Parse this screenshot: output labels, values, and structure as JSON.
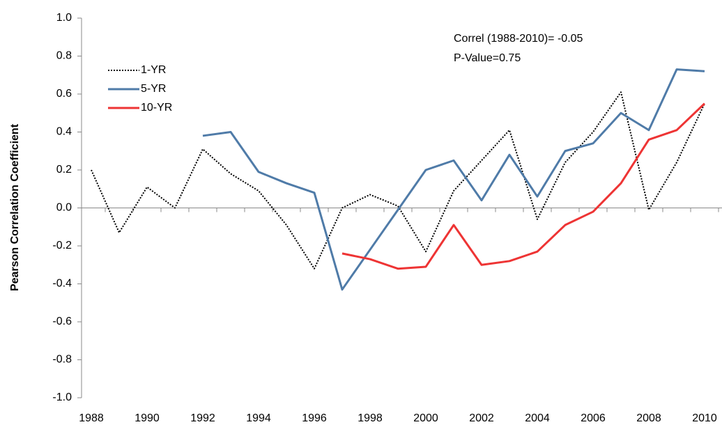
{
  "chart_data": {
    "type": "line",
    "y_label": "Pearson Correlation Coefficient",
    "annotations": [
      "Correl (1988-2010)= -0.05",
      "P-Value=0.75"
    ],
    "categories": [
      "1988",
      null,
      "1990",
      null,
      "1992",
      null,
      "1994",
      null,
      "1996",
      null,
      "1998",
      null,
      "2000",
      null,
      "2002",
      null,
      "2004",
      null,
      "2006",
      null,
      "2008",
      null,
      "2010"
    ],
    "series": [
      {
        "name": "1-YR",
        "color": "#000000",
        "style": "dotted",
        "values": [
          0.2,
          -0.13,
          0.11,
          0.0,
          0.31,
          0.18,
          0.09,
          -0.09,
          -0.32,
          0.0,
          0.07,
          0.01,
          -0.23,
          0.09,
          0.25,
          0.41,
          -0.06,
          0.24,
          0.4,
          0.61,
          -0.01,
          0.24,
          0.55
        ]
      },
      {
        "name": "5-YR",
        "color": "#4f7ba8",
        "style": "solid",
        "values": [
          null,
          null,
          null,
          null,
          0.38,
          0.4,
          0.19,
          0.13,
          0.08,
          -0.43,
          -0.22,
          -0.01,
          0.2,
          0.25,
          0.04,
          0.28,
          0.06,
          0.3,
          0.34,
          0.5,
          0.41,
          0.73,
          0.72
        ]
      },
      {
        "name": "10-YR",
        "color": "#ee3434",
        "style": "solid",
        "values": [
          null,
          null,
          null,
          null,
          null,
          null,
          null,
          null,
          null,
          -0.24,
          -0.27,
          -0.32,
          -0.31,
          -0.09,
          -0.3,
          -0.28,
          -0.23,
          -0.09,
          -0.02,
          0.13,
          0.36,
          0.41,
          0.55
        ]
      }
    ],
    "ylim": [
      -1,
      1
    ],
    "yticks": [
      {
        "value": 1,
        "label": "1.0"
      },
      0.8,
      0.6,
      0.4,
      0.2,
      {
        "value": 0,
        "label": "0.0"
      },
      -0.2,
      -0.4,
      -0.6,
      -0.8,
      {
        "value": -1,
        "label": "-1.0"
      }
    ],
    "legend": "upper-left"
  }
}
